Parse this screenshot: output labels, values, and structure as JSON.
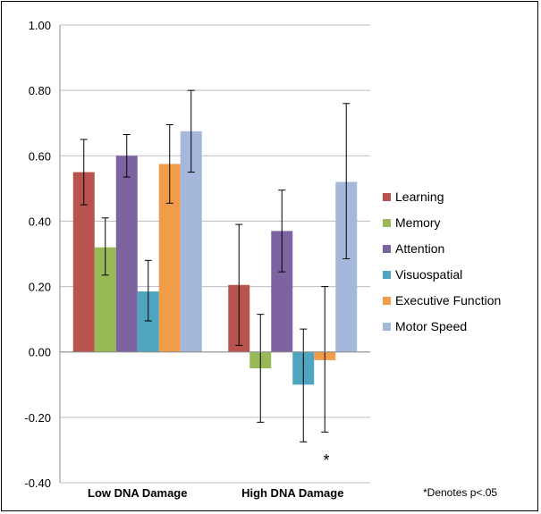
{
  "chart_data": {
    "type": "bar",
    "categories": [
      "Low DNA Damage",
      "High DNA Damage"
    ],
    "series": [
      {
        "name": "Learning",
        "color": "#b8534f",
        "values": [
          0.55,
          0.205
        ],
        "err_low": [
          0.45,
          0.02
        ],
        "err_high": [
          0.65,
          0.39
        ]
      },
      {
        "name": "Memory",
        "color": "#98b955",
        "values": [
          0.32,
          -0.05
        ],
        "err_low": [
          0.235,
          -0.215
        ],
        "err_high": [
          0.41,
          0.115
        ]
      },
      {
        "name": "Attention",
        "color": "#7e63a1",
        "values": [
          0.6,
          0.37
        ],
        "err_low": [
          0.535,
          0.245
        ],
        "err_high": [
          0.665,
          0.495
        ]
      },
      {
        "name": "Visuospatial",
        "color": "#4fa5bf",
        "values": [
          0.185,
          -0.1
        ],
        "err_low": [
          0.095,
          -0.275
        ],
        "err_high": [
          0.28,
          0.07
        ]
      },
      {
        "name": "Executive Function",
        "color": "#f09c49",
        "values": [
          0.575,
          -0.025
        ],
        "err_low": [
          0.455,
          -0.245
        ],
        "err_high": [
          0.695,
          0.2
        ]
      },
      {
        "name": "Motor Speed",
        "color": "#a4b8dc",
        "values": [
          0.675,
          0.52
        ],
        "err_low": [
          0.55,
          0.285
        ],
        "err_high": [
          0.8,
          0.76
        ]
      }
    ],
    "ylim": [
      -0.4,
      1.0
    ],
    "yticks": [
      "1.00",
      "0.80",
      "0.60",
      "0.40",
      "0.20",
      "0.00",
      "-0.20",
      "-0.40"
    ],
    "ytick_values": [
      1.0,
      0.8,
      0.6,
      0.4,
      0.2,
      0.0,
      -0.2,
      -0.4
    ],
    "grid": true,
    "legend_position": "right",
    "annotation": "*",
    "note": "*Denotes p<.05"
  }
}
